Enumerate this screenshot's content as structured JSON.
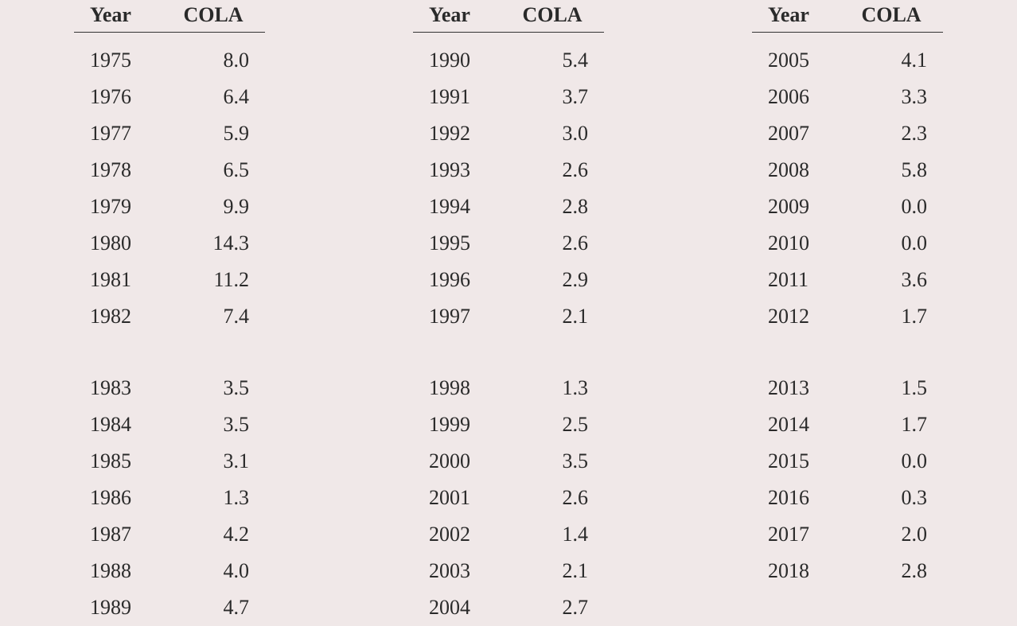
{
  "headers": {
    "year_label": "Year",
    "cola_label": "COLA"
  },
  "columns": [
    {
      "rows": [
        {
          "year": "1975",
          "cola": "8.0"
        },
        {
          "year": "1976",
          "cola": "6.4"
        },
        {
          "year": "1977",
          "cola": "5.9"
        },
        {
          "year": "1978",
          "cola": "6.5"
        },
        {
          "year": "1979",
          "cola": "9.9"
        },
        {
          "year": "1980",
          "cola": "14.3"
        },
        {
          "year": "1981",
          "cola": "11.2"
        },
        {
          "year": "1982",
          "cola": "7.4"
        },
        {
          "gap": true
        },
        {
          "year": "1983",
          "cola": "3.5"
        },
        {
          "year": "1984",
          "cola": "3.5"
        },
        {
          "year": "1985",
          "cola": "3.1"
        },
        {
          "year": "1986",
          "cola": "1.3"
        },
        {
          "year": "1987",
          "cola": "4.2"
        },
        {
          "year": "1988",
          "cola": "4.0"
        },
        {
          "year": "1989",
          "cola": "4.7"
        }
      ]
    },
    {
      "rows": [
        {
          "year": "1990",
          "cola": "5.4"
        },
        {
          "year": "1991",
          "cola": "3.7"
        },
        {
          "year": "1992",
          "cola": "3.0"
        },
        {
          "year": "1993",
          "cola": "2.6"
        },
        {
          "year": "1994",
          "cola": "2.8"
        },
        {
          "year": "1995",
          "cola": "2.6"
        },
        {
          "year": "1996",
          "cola": "2.9"
        },
        {
          "year": "1997",
          "cola": "2.1"
        },
        {
          "gap": true
        },
        {
          "year": "1998",
          "cola": "1.3"
        },
        {
          "year": "1999",
          "cola": "2.5"
        },
        {
          "year": "2000",
          "cola": "3.5"
        },
        {
          "year": "2001",
          "cola": "2.6"
        },
        {
          "year": "2002",
          "cola": "1.4"
        },
        {
          "year": "2003",
          "cola": "2.1"
        },
        {
          "year": "2004",
          "cola": "2.7"
        }
      ]
    },
    {
      "rows": [
        {
          "year": "2005",
          "cola": "4.1"
        },
        {
          "year": "2006",
          "cola": "3.3"
        },
        {
          "year": "2007",
          "cola": "2.3"
        },
        {
          "year": "2008",
          "cola": "5.8"
        },
        {
          "year": "2009",
          "cola": "0.0"
        },
        {
          "year": "2010",
          "cola": "0.0"
        },
        {
          "year": "2011",
          "cola": "3.6"
        },
        {
          "year": "2012",
          "cola": "1.7"
        },
        {
          "gap": true
        },
        {
          "year": "2013",
          "cola": "1.5"
        },
        {
          "year": "2014",
          "cola": "1.7"
        },
        {
          "year": "2015",
          "cola": "0.0"
        },
        {
          "year": "2016",
          "cola": "0.3"
        },
        {
          "year": "2017",
          "cola": "2.0"
        },
        {
          "year": "2018",
          "cola": "2.8"
        }
      ]
    }
  ],
  "style": {
    "background_color": "#f0e8e8",
    "text_color": "#2a2a2a",
    "header_fontsize": 26,
    "data_fontsize": 26,
    "font_family": "Georgia, serif",
    "border_color": "#333333",
    "column_count": 3,
    "year_col_width": 110,
    "cola_col_width": 130
  }
}
